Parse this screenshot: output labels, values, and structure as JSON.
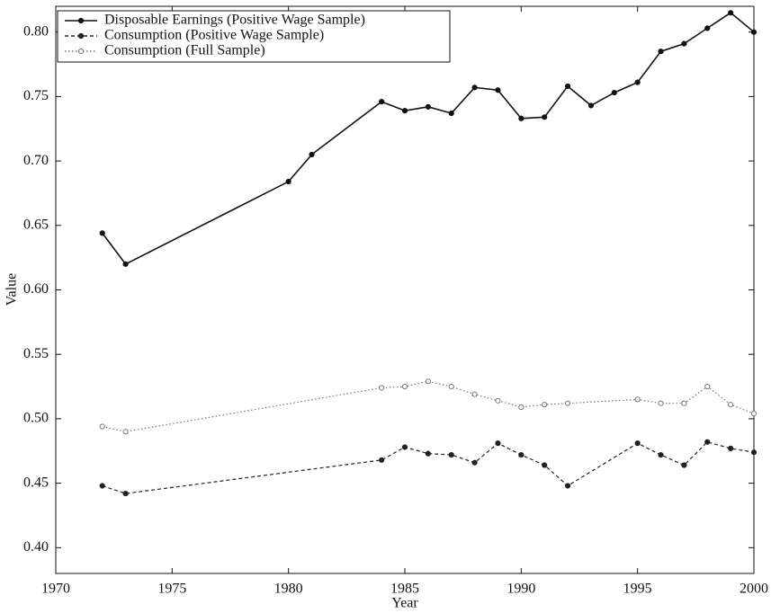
{
  "chart_data": {
    "type": "line",
    "x_label": "Year",
    "y_label": "Value",
    "xlim": [
      1970,
      2000
    ],
    "xticks": [
      1970,
      1975,
      1980,
      1985,
      1990,
      1995,
      2000
    ],
    "ylim": [
      0.38,
      0.82
    ],
    "yticks": [
      {
        "value": 0.4,
        "label": "0.40"
      },
      {
        "value": 0.45,
        "label": "0.45"
      },
      {
        "value": 0.5,
        "label": "0.50"
      },
      {
        "value": 0.55,
        "label": "0.55"
      },
      {
        "value": 0.6,
        "label": "0.60"
      },
      {
        "value": 0.65,
        "label": "0.65"
      },
      {
        "value": 0.7,
        "label": "0.70"
      },
      {
        "value": 0.75,
        "label": "0.75"
      },
      {
        "value": 0.8,
        "label": "0.80"
      }
    ],
    "grid": false,
    "legend": "upper left",
    "series": [
      {
        "name": "Disposable Earnings (Positive Wage Sample)",
        "color": "#111111",
        "dash": "solid",
        "marker": "filled",
        "x": [
          1972,
          1973,
          1980,
          1981,
          1984,
          1985,
          1986,
          1987,
          1988,
          1989,
          1990,
          1991,
          1992,
          1993,
          1994,
          1995,
          1996,
          1997,
          1998,
          1999,
          2000
        ],
        "values": [
          0.644,
          0.62,
          0.684,
          0.705,
          0.746,
          0.739,
          0.742,
          0.737,
          0.757,
          0.755,
          0.733,
          0.734,
          0.758,
          0.743,
          0.753,
          0.761,
          0.785,
          0.791,
          0.803,
          0.815,
          0.8
        ]
      },
      {
        "name": "Consumption (Positive Wage Sample)",
        "color": "#222222",
        "dash": "dashed",
        "marker": "filled",
        "x": [
          1972,
          1973,
          1984,
          1985,
          1986,
          1987,
          1988,
          1989,
          1990,
          1991,
          1992,
          1995,
          1996,
          1997,
          1998,
          1999,
          2000
        ],
        "values": [
          0.448,
          0.442,
          0.468,
          0.478,
          0.473,
          0.472,
          0.466,
          0.481,
          0.472,
          0.464,
          0.448,
          0.481,
          0.472,
          0.464,
          0.482,
          0.477,
          0.474
        ]
      },
      {
        "name": "Consumption (Full Sample)",
        "color": "#777777",
        "dash": "dotted",
        "marker": "open",
        "x": [
          1972,
          1973,
          1984,
          1985,
          1986,
          1987,
          1988,
          1989,
          1990,
          1991,
          1992,
          1995,
          1996,
          1997,
          1998,
          1999,
          2000
        ],
        "values": [
          0.494,
          0.49,
          0.524,
          0.525,
          0.529,
          0.525,
          0.519,
          0.514,
          0.509,
          0.511,
          0.512,
          0.515,
          0.512,
          0.512,
          0.525,
          0.511,
          0.504
        ]
      }
    ]
  }
}
